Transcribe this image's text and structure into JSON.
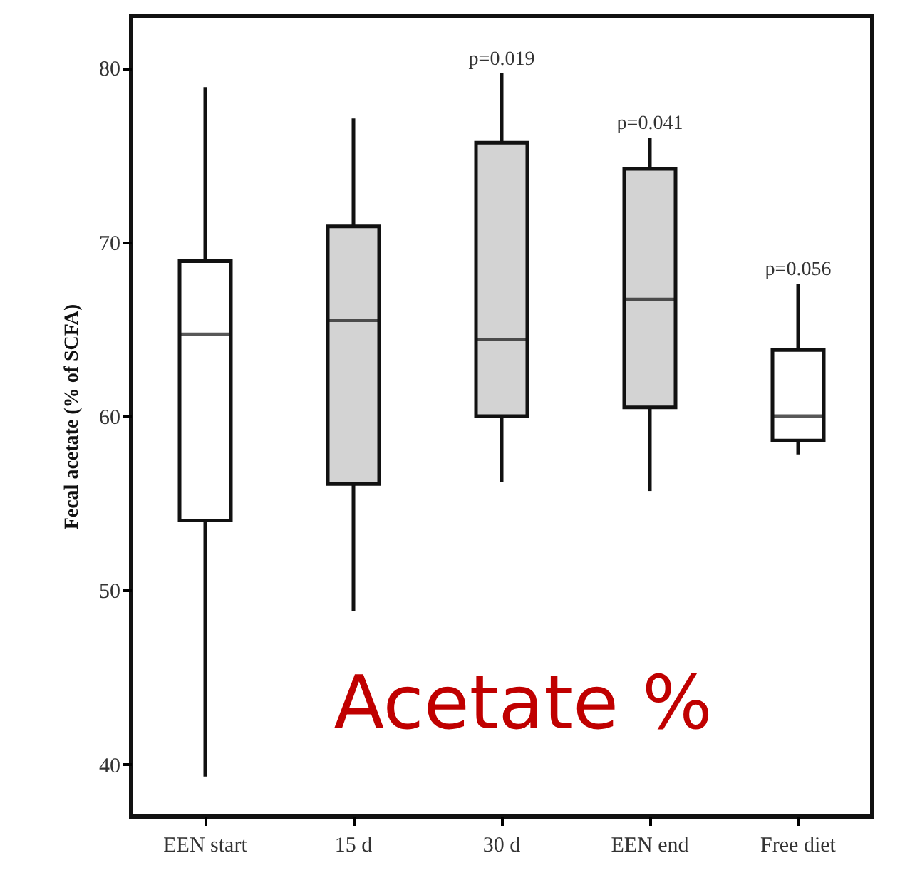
{
  "chart_data": {
    "type": "box",
    "ylabel": "Fecal acetate (% of SCFA)",
    "categories": [
      "EEN start",
      "15 d",
      "30 d",
      "EEN end",
      "Free diet"
    ],
    "boxes": [
      {
        "low": 39.3,
        "q1": 54.0,
        "median": 64.7,
        "q3": 68.9,
        "high": 78.9
      },
      {
        "low": 48.8,
        "q1": 56.1,
        "median": 65.5,
        "q3": 70.9,
        "high": 77.1
      },
      {
        "low": 56.2,
        "q1": 60.0,
        "median": 64.4,
        "q3": 75.7,
        "high": 79.7
      },
      {
        "low": 55.7,
        "q1": 60.5,
        "median": 66.7,
        "q3": 74.2,
        "high": 76.0
      },
      {
        "low": 57.8,
        "q1": 58.6,
        "median": 60.0,
        "q3": 63.8,
        "high": 67.6
      }
    ],
    "colors": [
      "#ffffff",
      "#d3d3d3",
      "#d3d3d3",
      "#d3d3d3",
      "#ffffff"
    ],
    "ylim": [
      37,
      83
    ],
    "yticks": [
      40,
      50,
      60,
      70,
      80
    ],
    "grid": false,
    "annotations": [
      {
        "text": "p=0.019",
        "x": "30 d",
        "y": 79.7
      },
      {
        "text": "p=0.041",
        "x": "EEN end",
        "y": 76.0
      },
      {
        "text": "p=0.056",
        "x": "Free diet",
        "y": 67.6
      },
      "Acetate %"
    ]
  }
}
